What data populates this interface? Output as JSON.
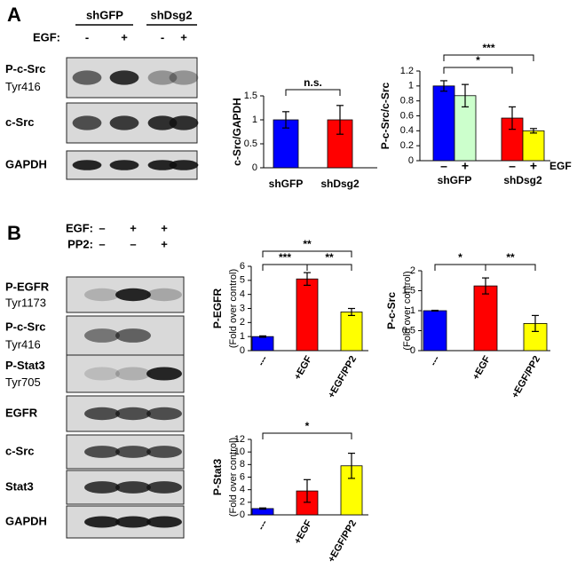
{
  "panel_a": {
    "label": "A",
    "groups": [
      "shGFP",
      "shDsg2"
    ],
    "treatment": "EGF:",
    "lanes": [
      "-",
      "+",
      "-",
      "+"
    ],
    "rows": [
      {
        "label": "P-c-Src",
        "sublabel": "Tyr416"
      },
      {
        "label": "c-Src"
      },
      {
        "label": "GAPDH"
      }
    ]
  },
  "panel_b": {
    "label": "B",
    "treatments": [
      {
        "name": "EGF:",
        "lanes": [
          "–",
          "+",
          "+"
        ]
      },
      {
        "name": "PP2:",
        "lanes": [
          "–",
          "–",
          "+"
        ]
      }
    ],
    "rows": [
      {
        "label": "P-EGFR",
        "sublabel": "Tyr1173"
      },
      {
        "label": "P-c-Src",
        "sublabel": "Tyr416"
      },
      {
        "label": "P-Stat3",
        "sublabel": "Tyr705"
      },
      {
        "label": "EGFR"
      },
      {
        "label": "c-Src"
      },
      {
        "label": "Stat3"
      },
      {
        "label": "GAPDH"
      }
    ]
  },
  "chart_data": [
    {
      "type": "bar",
      "y_label": "c-Src/GAPDH",
      "categories": [
        "shGFP",
        "shDsg2"
      ],
      "values": [
        1,
        1
      ],
      "errors": [
        0.17,
        0.3
      ],
      "colors": [
        "#0000ff",
        "#ff0000"
      ],
      "ylim": [
        0,
        1.5
      ],
      "yticks": [
        0,
        0.5,
        1,
        1.5
      ],
      "annotations": [
        "n.s."
      ]
    },
    {
      "type": "bar",
      "y_label": "P-c-Src/c-Src",
      "categories": [
        "–",
        "+",
        "–",
        "+"
      ],
      "groups": [
        "shGFP",
        "shDsg2"
      ],
      "x_note": "EGF",
      "values": [
        1.0,
        0.87,
        0.57,
        0.4
      ],
      "errors": [
        0.07,
        0.15,
        0.15,
        0.03
      ],
      "colors": [
        "#0000ff",
        "#ccffcc",
        "#ff0000",
        "#ffff00"
      ],
      "ylim": [
        0,
        1.2
      ],
      "yticks": [
        0,
        0.2,
        0.4,
        0.6,
        0.8,
        1,
        1.2
      ],
      "annotations": [
        "***",
        "*"
      ]
    },
    {
      "type": "bar",
      "y_label": "P-EGFR",
      "y_sublabel": "(Fold over control)",
      "categories": [
        "---",
        "+EGF",
        "+EGF/PP2"
      ],
      "values": [
        1,
        5.1,
        2.75
      ],
      "errors": [
        0.05,
        0.45,
        0.25
      ],
      "colors": [
        "#0000ff",
        "#ff0000",
        "#ffff00"
      ],
      "ylim": [
        0,
        6
      ],
      "yticks": [
        0,
        1,
        2,
        3,
        4,
        5,
        6
      ],
      "annotations": [
        "**",
        "***",
        "**"
      ]
    },
    {
      "type": "bar",
      "y_label": "P-c-Src",
      "y_sublabel": "(Fold over control)",
      "categories": [
        "---",
        "+EGF",
        "+EGF/PP2"
      ],
      "values": [
        1,
        1.62,
        0.68
      ],
      "errors": [
        0.01,
        0.2,
        0.2
      ],
      "colors": [
        "#0000ff",
        "#ff0000",
        "#ffff00"
      ],
      "ylim": [
        0,
        2
      ],
      "yticks": [
        0,
        0.5,
        1,
        1.5,
        2
      ],
      "annotations": [
        "*",
        "**"
      ]
    },
    {
      "type": "bar",
      "y_label": "P-Stat3",
      "y_sublabel": "(Fold over control)",
      "categories": [
        "---",
        "+EGF",
        "+EGF/PP2"
      ],
      "values": [
        1,
        3.8,
        7.8
      ],
      "errors": [
        0.1,
        1.8,
        2
      ],
      "colors": [
        "#0000ff",
        "#ff0000",
        "#ffff00"
      ],
      "ylim": [
        0,
        12
      ],
      "yticks": [
        0,
        2,
        4,
        6,
        8,
        10,
        12
      ],
      "annotations": [
        "*"
      ]
    }
  ]
}
